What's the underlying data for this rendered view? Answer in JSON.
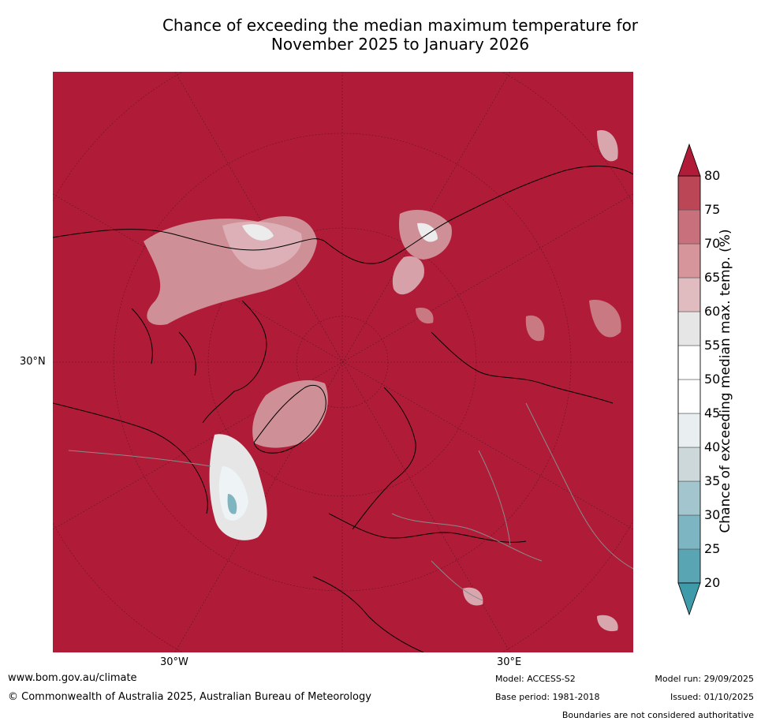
{
  "title": {
    "line1": "Chance of exceeding the median maximum temperature for",
    "line2": "November 2025 to January 2026"
  },
  "map": {
    "background_color": "#b01c38",
    "lat_labels": [
      "30°N"
    ],
    "lon_labels": [
      "30°W",
      "30°E"
    ]
  },
  "colorbar": {
    "title": "Chance of exceeding median max. temp. (%)",
    "levels": [
      "20",
      "25",
      "30",
      "35",
      "40",
      "45",
      "50",
      "55",
      "60",
      "65",
      "70",
      "75",
      "80"
    ],
    "colors": [
      "#5aa5b3",
      "#7eb5c2",
      "#a3c6ce",
      "#ccd8da",
      "#e9eff1",
      "#ffffff",
      "#ffffff",
      "#e6e6e6",
      "#e0bcc0",
      "#d6949b",
      "#c8707b",
      "#bb4656",
      "#b01c38"
    ],
    "under_color": "#3f9aa9",
    "over_color": "#b01c38"
  },
  "footer": {
    "website": "www.bom.gov.au/climate",
    "copyright": "© Commonwealth of Australia 2025, Australian Bureau of Meteorology",
    "model": "Model: ACCESS-S2",
    "base_period": "Base period: 1981-2018",
    "model_run": "Model run: 29/09/2025",
    "issued": "Issued: 01/10/2025",
    "disclaimer": "Boundaries are not considered authoritative"
  }
}
